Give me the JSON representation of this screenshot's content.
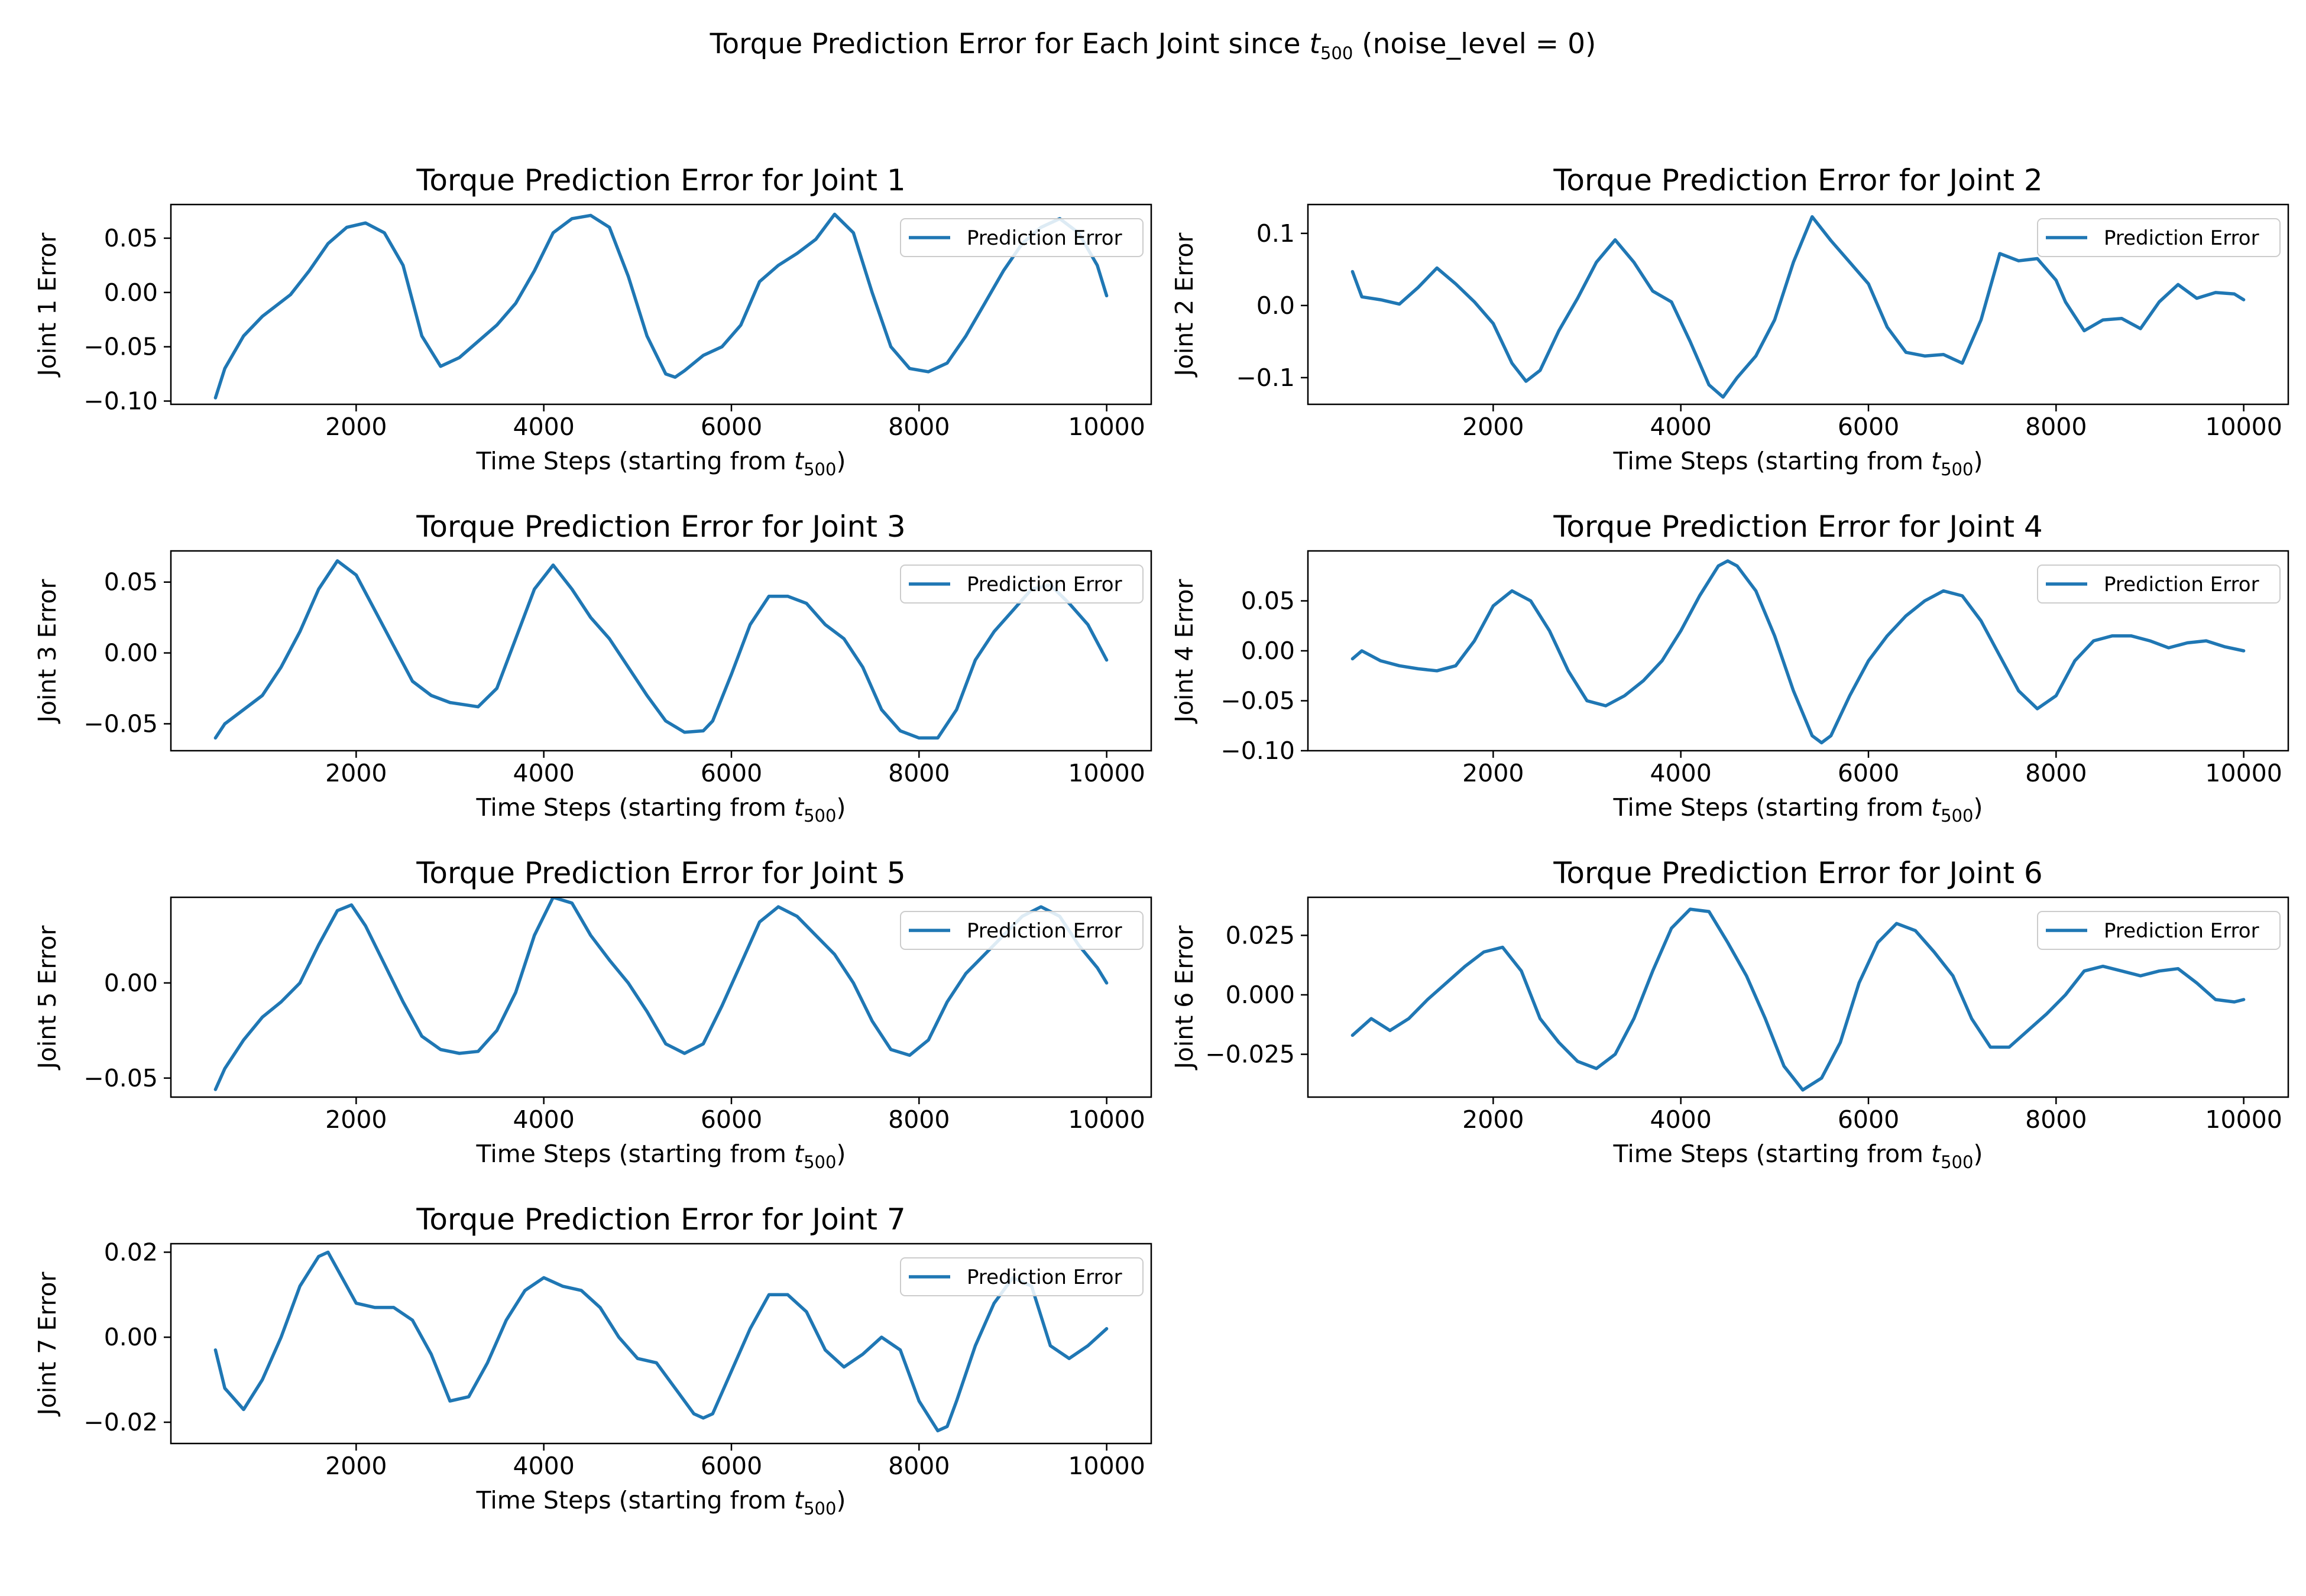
{
  "figure": {
    "suptitle": "Torque Prediction Error for Each Joint since t500 (noise_level = 0)",
    "suptitle_main": "Torque Prediction Error for Each Joint since ",
    "suptitle_sym": "t",
    "suptitle_sub": "500",
    "suptitle_tail": " (noise_level = 0)",
    "line_color": "#1f77b4"
  },
  "chart_data": [
    {
      "type": "line",
      "title": "Torque Prediction Error for Joint 1",
      "xlabel": "Time Steps (starting from t500)",
      "ylabel": "Joint 1 Error",
      "xlim": [
        25,
        10475
      ],
      "ylim": [
        -0.103,
        0.081
      ],
      "xticks": [
        2000,
        4000,
        6000,
        8000,
        10000
      ],
      "xtick_labels": [
        "2000",
        "4000",
        "6000",
        "8000",
        "10000"
      ],
      "yticks": [
        -0.1,
        -0.05,
        0,
        0.05
      ],
      "ytick_labels": [
        "−0.10",
        "−0.05",
        "0.00",
        "0.05"
      ],
      "legend": "upper right",
      "grid": false,
      "series": [
        {
          "name": "Prediction Error",
          "x": [
            500,
            600,
            800,
            1000,
            1300,
            1500,
            1700,
            1900,
            2100,
            2300,
            2500,
            2700,
            2900,
            3100,
            3300,
            3500,
            3700,
            3900,
            4100,
            4300,
            4500,
            4700,
            4900,
            5100,
            5300,
            5400,
            5500,
            5700,
            5900,
            6100,
            6300,
            6500,
            6700,
            6900,
            7100,
            7300,
            7500,
            7700,
            7900,
            8100,
            8300,
            8500,
            8700,
            8900,
            9100,
            9300,
            9500,
            9700,
            9900,
            10000
          ],
          "y": [
            -0.097,
            -0.07,
            -0.04,
            -0.022,
            -0.002,
            0.02,
            0.045,
            0.06,
            0.064,
            0.055,
            0.025,
            -0.04,
            -0.068,
            -0.06,
            -0.045,
            -0.03,
            -0.01,
            0.02,
            0.055,
            0.068,
            0.071,
            0.06,
            0.015,
            -0.04,
            -0.075,
            -0.078,
            -0.072,
            -0.058,
            -0.05,
            -0.03,
            0.01,
            0.025,
            0.036,
            0.049,
            0.072,
            0.055,
            0.0,
            -0.05,
            -0.07,
            -0.073,
            -0.065,
            -0.04,
            -0.01,
            0.02,
            0.045,
            0.06,
            0.068,
            0.055,
            0.025,
            -0.003
          ]
        }
      ]
    },
    {
      "type": "line",
      "title": "Torque Prediction Error for Joint 2",
      "xlabel": "Time Steps (starting from t500)",
      "ylabel": "Joint 2 Error",
      "xlim": [
        25,
        10475
      ],
      "ylim": [
        -0.137,
        0.14
      ],
      "xticks": [
        2000,
        4000,
        6000,
        8000,
        10000
      ],
      "xtick_labels": [
        "2000",
        "4000",
        "6000",
        "8000",
        "10000"
      ],
      "yticks": [
        -0.1,
        0,
        0.1
      ],
      "ytick_labels": [
        "−0.1",
        "0.0",
        "0.1"
      ],
      "legend": "upper right",
      "grid": false,
      "series": [
        {
          "name": "Prediction Error",
          "x": [
            500,
            600,
            800,
            1000,
            1200,
            1400,
            1600,
            1800,
            2000,
            2200,
            2350,
            2500,
            2700,
            2900,
            3100,
            3300,
            3500,
            3700,
            3900,
            4100,
            4300,
            4450,
            4600,
            4800,
            5000,
            5200,
            5400,
            5600,
            5800,
            6000,
            6200,
            6400,
            6600,
            6800,
            7000,
            7200,
            7400,
            7600,
            7800,
            8000,
            8100,
            8300,
            8500,
            8700,
            8900,
            9100,
            9300,
            9500,
            9700,
            9900,
            10000
          ],
          "y": [
            0.047,
            0.012,
            0.008,
            0.002,
            0.025,
            0.052,
            0.03,
            0.005,
            -0.025,
            -0.08,
            -0.105,
            -0.09,
            -0.035,
            0.01,
            0.06,
            0.091,
            0.06,
            0.02,
            0.005,
            -0.05,
            -0.11,
            -0.127,
            -0.1,
            -0.07,
            -0.02,
            0.06,
            0.123,
            0.09,
            0.06,
            0.03,
            -0.03,
            -0.065,
            -0.07,
            -0.068,
            -0.08,
            -0.02,
            0.072,
            0.062,
            0.065,
            0.035,
            0.005,
            -0.035,
            -0.02,
            -0.018,
            -0.032,
            0.005,
            0.029,
            0.01,
            0.018,
            0.016,
            0.008
          ]
        }
      ]
    },
    {
      "type": "line",
      "title": "Torque Prediction Error for Joint 3",
      "xlabel": "Time Steps (starting from t500)",
      "ylabel": "Joint 3 Error",
      "xlim": [
        25,
        10475
      ],
      "ylim": [
        -0.069,
        0.072
      ],
      "xticks": [
        2000,
        4000,
        6000,
        8000,
        10000
      ],
      "xtick_labels": [
        "2000",
        "4000",
        "6000",
        "8000",
        "10000"
      ],
      "yticks": [
        -0.05,
        0,
        0.05
      ],
      "ytick_labels": [
        "−0.05",
        "0.00",
        "0.05"
      ],
      "legend": "upper right",
      "grid": false,
      "series": [
        {
          "name": "Prediction Error",
          "x": [
            500,
            600,
            800,
            1000,
            1200,
            1400,
            1600,
            1800,
            2000,
            2200,
            2400,
            2600,
            2800,
            3000,
            3300,
            3500,
            3700,
            3900,
            4100,
            4300,
            4500,
            4700,
            4900,
            5100,
            5300,
            5500,
            5700,
            5800,
            6000,
            6200,
            6400,
            6600,
            6800,
            7000,
            7200,
            7400,
            7600,
            7800,
            8000,
            8200,
            8400,
            8600,
            8800,
            9000,
            9200,
            9400,
            9600,
            9800,
            10000
          ],
          "y": [
            -0.06,
            -0.05,
            -0.04,
            -0.03,
            -0.01,
            0.015,
            0.045,
            0.065,
            0.055,
            0.03,
            0.005,
            -0.02,
            -0.03,
            -0.035,
            -0.038,
            -0.025,
            0.01,
            0.045,
            0.062,
            0.045,
            0.025,
            0.01,
            -0.01,
            -0.03,
            -0.048,
            -0.056,
            -0.055,
            -0.048,
            -0.015,
            0.02,
            0.04,
            0.04,
            0.035,
            0.02,
            0.01,
            -0.01,
            -0.04,
            -0.055,
            -0.06,
            -0.06,
            -0.04,
            -0.005,
            0.015,
            0.03,
            0.045,
            0.048,
            0.035,
            0.02,
            -0.005
          ]
        }
      ]
    },
    {
      "type": "line",
      "title": "Torque Prediction Error for Joint 4",
      "xlabel": "Time Steps (starting from t500)",
      "ylabel": "Joint 4 Error",
      "xlim": [
        25,
        10475
      ],
      "ylim": [
        -0.1,
        0.1
      ],
      "xticks": [
        2000,
        4000,
        6000,
        8000,
        10000
      ],
      "xtick_labels": [
        "2000",
        "4000",
        "6000",
        "8000",
        "10000"
      ],
      "yticks": [
        -0.1,
        -0.05,
        0,
        0.05
      ],
      "ytick_labels": [
        "−0.10",
        "−0.05",
        "0.00",
        "0.05"
      ],
      "legend": "upper right",
      "grid": false,
      "series": [
        {
          "name": "Prediction Error",
          "x": [
            500,
            600,
            800,
            1000,
            1200,
            1400,
            1600,
            1800,
            2000,
            2200,
            2400,
            2600,
            2800,
            3000,
            3200,
            3400,
            3600,
            3800,
            4000,
            4200,
            4400,
            4500,
            4600,
            4800,
            5000,
            5200,
            5400,
            5500,
            5600,
            5800,
            6000,
            6200,
            6400,
            6600,
            6800,
            7000,
            7200,
            7400,
            7600,
            7800,
            8000,
            8200,
            8400,
            8600,
            8800,
            9000,
            9200,
            9400,
            9600,
            9800,
            10000
          ],
          "y": [
            -0.008,
            0.0,
            -0.01,
            -0.015,
            -0.018,
            -0.02,
            -0.015,
            0.01,
            0.045,
            0.06,
            0.05,
            0.02,
            -0.02,
            -0.05,
            -0.055,
            -0.045,
            -0.03,
            -0.01,
            0.02,
            0.055,
            0.085,
            0.09,
            0.085,
            0.06,
            0.015,
            -0.04,
            -0.085,
            -0.092,
            -0.085,
            -0.045,
            -0.01,
            0.015,
            0.035,
            0.05,
            0.06,
            0.055,
            0.03,
            -0.005,
            -0.04,
            -0.058,
            -0.045,
            -0.01,
            0.01,
            0.015,
            0.015,
            0.01,
            0.003,
            0.008,
            0.01,
            0.004,
            0.0
          ]
        }
      ]
    },
    {
      "type": "line",
      "title": "Torque Prediction Error for Joint 5",
      "xlabel": "Time Steps (starting from t500)",
      "ylabel": "Joint 5 Error",
      "xlim": [
        25,
        10475
      ],
      "ylim": [
        -0.06,
        0.045
      ],
      "xticks": [
        2000,
        4000,
        6000,
        8000,
        10000
      ],
      "xtick_labels": [
        "2000",
        "4000",
        "6000",
        "8000",
        "10000"
      ],
      "yticks": [
        -0.05,
        0
      ],
      "ytick_labels": [
        "−0.05",
        "0.00"
      ],
      "legend": "upper right",
      "grid": false,
      "series": [
        {
          "name": "Prediction Error",
          "x": [
            500,
            600,
            800,
            1000,
            1200,
            1400,
            1600,
            1800,
            1950,
            2100,
            2300,
            2500,
            2700,
            2900,
            3100,
            3300,
            3500,
            3700,
            3900,
            4100,
            4300,
            4500,
            4700,
            4900,
            5100,
            5300,
            5500,
            5700,
            5900,
            6100,
            6300,
            6500,
            6700,
            6900,
            7100,
            7300,
            7500,
            7700,
            7900,
            8100,
            8300,
            8500,
            8700,
            8900,
            9100,
            9300,
            9500,
            9700,
            9900,
            10000
          ],
          "y": [
            -0.056,
            -0.045,
            -0.03,
            -0.018,
            -0.01,
            0.0,
            0.02,
            0.038,
            0.041,
            0.03,
            0.01,
            -0.01,
            -0.028,
            -0.035,
            -0.037,
            -0.036,
            -0.025,
            -0.005,
            0.025,
            0.045,
            0.042,
            0.025,
            0.012,
            0.0,
            -0.015,
            -0.032,
            -0.037,
            -0.032,
            -0.012,
            0.01,
            0.032,
            0.04,
            0.035,
            0.025,
            0.015,
            0.0,
            -0.02,
            -0.035,
            -0.038,
            -0.03,
            -0.01,
            0.005,
            0.015,
            0.025,
            0.035,
            0.04,
            0.035,
            0.02,
            0.008,
            0.0
          ]
        }
      ]
    },
    {
      "type": "line",
      "title": "Torque Prediction Error for Joint 6",
      "xlabel": "Time Steps (starting from t500)",
      "ylabel": "Joint 6 Error",
      "xlim": [
        25,
        10475
      ],
      "ylim": [
        -0.043,
        0.041
      ],
      "xticks": [
        2000,
        4000,
        6000,
        8000,
        10000
      ],
      "xtick_labels": [
        "2000",
        "4000",
        "6000",
        "8000",
        "10000"
      ],
      "yticks": [
        -0.025,
        0,
        0.025
      ],
      "ytick_labels": [
        "−0.025",
        "0.000",
        "0.025"
      ],
      "legend": "upper right",
      "grid": false,
      "series": [
        {
          "name": "Prediction Error",
          "x": [
            500,
            700,
            900,
            1100,
            1300,
            1500,
            1700,
            1900,
            2100,
            2300,
            2500,
            2700,
            2900,
            3100,
            3300,
            3500,
            3700,
            3900,
            4100,
            4300,
            4500,
            4700,
            4900,
            5100,
            5300,
            5500,
            5700,
            5900,
            6100,
            6300,
            6500,
            6700,
            6900,
            7100,
            7300,
            7500,
            7700,
            7900,
            8100,
            8300,
            8500,
            8700,
            8900,
            9100,
            9300,
            9500,
            9700,
            9900,
            10000
          ],
          "y": [
            -0.017,
            -0.01,
            -0.015,
            -0.01,
            -0.002,
            0.005,
            0.012,
            0.018,
            0.02,
            0.01,
            -0.01,
            -0.02,
            -0.028,
            -0.031,
            -0.025,
            -0.01,
            0.01,
            0.028,
            0.036,
            0.035,
            0.022,
            0.008,
            -0.01,
            -0.03,
            -0.04,
            -0.035,
            -0.02,
            0.005,
            0.022,
            0.03,
            0.027,
            0.018,
            0.008,
            -0.01,
            -0.022,
            -0.022,
            -0.015,
            -0.008,
            0.0,
            0.01,
            0.012,
            0.01,
            0.008,
            0.01,
            0.011,
            0.005,
            -0.002,
            -0.003,
            -0.002
          ]
        }
      ]
    },
    {
      "type": "line",
      "title": "Torque Prediction Error for Joint 7",
      "xlabel": "Time Steps (starting from t500)",
      "ylabel": "Joint 7 Error",
      "xlim": [
        25,
        10475
      ],
      "ylim": [
        -0.025,
        0.022
      ],
      "xticks": [
        2000,
        4000,
        6000,
        8000,
        10000
      ],
      "xtick_labels": [
        "2000",
        "4000",
        "6000",
        "8000",
        "10000"
      ],
      "yticks": [
        -0.02,
        0,
        0.02
      ],
      "ytick_labels": [
        "−0.02",
        "0.00",
        "0.02"
      ],
      "legend": "upper right",
      "grid": false,
      "series": [
        {
          "name": "Prediction Error",
          "x": [
            500,
            600,
            800,
            1000,
            1200,
            1400,
            1600,
            1700,
            1800,
            2000,
            2200,
            2400,
            2600,
            2800,
            3000,
            3200,
            3400,
            3600,
            3800,
            4000,
            4200,
            4400,
            4600,
            4800,
            5000,
            5200,
            5400,
            5600,
            5700,
            5800,
            6000,
            6200,
            6400,
            6600,
            6800,
            7000,
            7200,
            7400,
            7600,
            7800,
            8000,
            8200,
            8300,
            8400,
            8600,
            8800,
            9000,
            9200,
            9400,
            9600,
            9800,
            10000
          ],
          "y": [
            -0.003,
            -0.012,
            -0.017,
            -0.01,
            0.0,
            0.012,
            0.019,
            0.02,
            0.016,
            0.008,
            0.007,
            0.007,
            0.004,
            -0.004,
            -0.015,
            -0.014,
            -0.006,
            0.004,
            0.011,
            0.014,
            0.012,
            0.011,
            0.007,
            0.0,
            -0.005,
            -0.006,
            -0.012,
            -0.018,
            -0.019,
            -0.018,
            -0.008,
            0.002,
            0.01,
            0.01,
            0.006,
            -0.003,
            -0.007,
            -0.004,
            0.0,
            -0.003,
            -0.015,
            -0.022,
            -0.021,
            -0.015,
            -0.002,
            0.008,
            0.014,
            0.012,
            -0.002,
            -0.005,
            -0.002,
            0.002
          ]
        }
      ]
    }
  ]
}
